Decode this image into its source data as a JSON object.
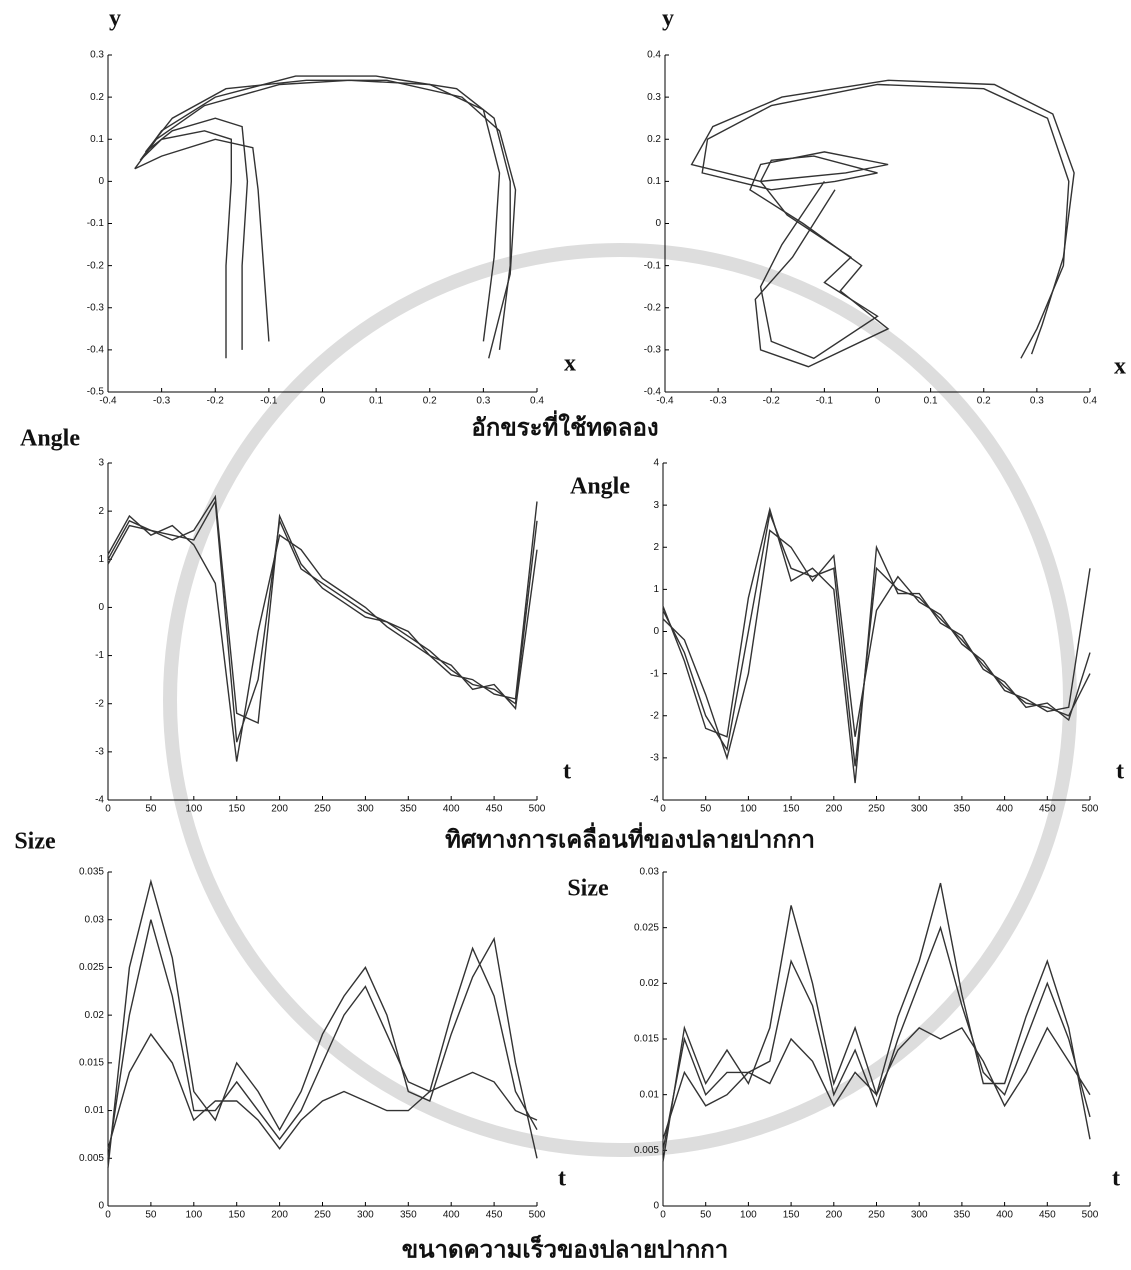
{
  "captions": [
    "อักขระที่ใช้ทดลอง",
    "ทิศทางการเคลื่อนที่ของปลายปากกา",
    "ขนาดความเร็วของปลายปากกา"
  ],
  "chart_data": [
    {
      "type": "trajectory",
      "ylabel": "y",
      "xlabel": "x",
      "color": "#333333",
      "xlim": [
        -0.4,
        0.4
      ],
      "ylim": [
        -0.5,
        0.3
      ],
      "xticks": [
        -0.4,
        -0.3,
        -0.2,
        -0.1,
        0,
        0.1,
        0.2,
        0.3,
        0.4
      ],
      "yticks": [
        -0.5,
        -0.4,
        -0.3,
        -0.2,
        -0.1,
        0,
        0.1,
        0.2,
        0.3
      ],
      "series": [
        {
          "x": [
            -0.18,
            -0.18,
            -0.17,
            -0.17,
            -0.22,
            -0.3,
            -0.34,
            -0.3,
            -0.2,
            -0.05,
            0.1,
            0.25,
            0.32,
            0.35,
            0.35,
            0.33
          ],
          "values": [
            -0.42,
            -0.2,
            0.0,
            0.1,
            0.12,
            0.1,
            0.05,
            0.12,
            0.2,
            0.25,
            0.25,
            0.22,
            0.15,
            0.0,
            -0.2,
            -0.4
          ]
        },
        {
          "x": [
            -0.15,
            -0.15,
            -0.14,
            -0.15,
            -0.2,
            -0.28,
            -0.33,
            -0.28,
            -0.18,
            -0.03,
            0.12,
            0.26,
            0.33,
            0.36,
            0.35,
            0.31
          ],
          "values": [
            -0.4,
            -0.2,
            0.0,
            0.13,
            0.15,
            0.12,
            0.07,
            0.15,
            0.22,
            0.24,
            0.24,
            0.2,
            0.12,
            -0.02,
            -0.22,
            -0.42
          ]
        },
        {
          "x": [
            -0.1,
            -0.11,
            -0.12,
            -0.13,
            -0.2,
            -0.3,
            -0.35,
            -0.31,
            -0.22,
            -0.08,
            0.05,
            0.2,
            0.3,
            0.33,
            0.32,
            0.3
          ],
          "values": [
            -0.38,
            -0.2,
            -0.02,
            0.08,
            0.1,
            0.06,
            0.03,
            0.1,
            0.18,
            0.23,
            0.24,
            0.23,
            0.17,
            0.02,
            -0.18,
            -0.38
          ]
        }
      ]
    },
    {
      "type": "trajectory",
      "ylabel": "y",
      "xlabel": "x",
      "color": "#333333",
      "xlim": [
        -0.4,
        0.4
      ],
      "ylim": [
        -0.4,
        0.4
      ],
      "xticks": [
        -0.4,
        -0.3,
        -0.2,
        -0.1,
        0,
        0.1,
        0.2,
        0.3,
        0.4
      ],
      "yticks": [
        -0.4,
        -0.3,
        -0.2,
        -0.1,
        0,
        0.1,
        0.2,
        0.3,
        0.4
      ],
      "series": [
        {
          "x": [
            -0.1,
            -0.18,
            -0.22,
            -0.2,
            -0.12,
            0.0,
            -0.1,
            -0.05,
            -0.17,
            -0.22,
            -0.2,
            -0.12,
            0.0,
            -0.08,
            -0.2,
            -0.33,
            -0.32,
            -0.2,
            0.0,
            0.2,
            0.32,
            0.36,
            0.35,
            0.3,
            0.27
          ],
          "values": [
            0.1,
            -0.05,
            -0.15,
            -0.28,
            -0.32,
            -0.22,
            -0.14,
            -0.08,
            0.02,
            0.1,
            0.15,
            0.16,
            0.12,
            0.1,
            0.08,
            0.12,
            0.2,
            0.28,
            0.33,
            0.32,
            0.25,
            0.1,
            -0.1,
            -0.25,
            -0.32
          ]
        },
        {
          "x": [
            -0.08,
            -0.16,
            -0.23,
            -0.22,
            -0.13,
            0.02,
            -0.07,
            -0.03,
            -0.14,
            -0.24,
            -0.22,
            -0.1,
            0.02,
            -0.06,
            -0.22,
            -0.35,
            -0.31,
            -0.18,
            0.02,
            0.22,
            0.33,
            0.37,
            0.35,
            0.31,
            0.29
          ],
          "values": [
            0.08,
            -0.08,
            -0.18,
            -0.3,
            -0.34,
            -0.25,
            -0.16,
            -0.1,
            0.0,
            0.08,
            0.14,
            0.17,
            0.14,
            0.12,
            0.1,
            0.14,
            0.23,
            0.3,
            0.34,
            0.33,
            0.26,
            0.12,
            -0.08,
            -0.24,
            -0.31
          ]
        }
      ]
    },
    {
      "type": "line",
      "ylabel": "Angle",
      "xlabel": "t",
      "color": "#333333",
      "x": [
        0,
        25,
        50,
        75,
        100,
        125,
        150,
        175,
        200,
        225,
        250,
        275,
        300,
        325,
        350,
        375,
        400,
        425,
        450,
        475,
        500
      ],
      "xlim": [
        0,
        500
      ],
      "ylim": [
        -4,
        3
      ],
      "xticks": [
        0,
        50,
        100,
        150,
        200,
        250,
        300,
        350,
        400,
        450,
        500
      ],
      "yticks": [
        -4,
        -3,
        -2,
        -1,
        0,
        1,
        2,
        3
      ],
      "series": [
        {
          "values": [
            1,
            1.8,
            1.6,
            1.5,
            1.4,
            2.2,
            -2.8,
            -1.5,
            1.8,
            0.8,
            0.5,
            0.2,
            -0.1,
            -0.3,
            -0.6,
            -0.9,
            -1.3,
            -1.6,
            -1.7,
            -2.0,
            1.8
          ]
        },
        {
          "values": [
            1.1,
            1.9,
            1.5,
            1.7,
            1.3,
            0.5,
            -3.2,
            -0.5,
            1.5,
            1.2,
            0.6,
            0.3,
            0.0,
            -0.4,
            -0.7,
            -1.0,
            -1.4,
            -1.5,
            -1.8,
            -1.9,
            2.2
          ]
        },
        {
          "values": [
            0.9,
            1.7,
            1.6,
            1.4,
            1.6,
            2.3,
            -2.2,
            -2.4,
            1.9,
            0.9,
            0.4,
            0.1,
            -0.2,
            -0.3,
            -0.5,
            -1.0,
            -1.2,
            -1.7,
            -1.6,
            -2.1,
            1.2
          ]
        }
      ]
    },
    {
      "type": "line",
      "ylabel": "Angle",
      "xlabel": "t",
      "color": "#333333",
      "x": [
        0,
        25,
        50,
        75,
        100,
        125,
        150,
        175,
        200,
        225,
        250,
        275,
        300,
        325,
        350,
        375,
        400,
        425,
        450,
        475,
        500
      ],
      "xlim": [
        0,
        500
      ],
      "ylim": [
        -4,
        4
      ],
      "xticks": [
        0,
        50,
        100,
        150,
        200,
        250,
        300,
        350,
        400,
        450,
        500
      ],
      "yticks": [
        -4,
        -3,
        -2,
        -1,
        0,
        1,
        2,
        3,
        4
      ],
      "series": [
        {
          "values": [
            0.5,
            -0.5,
            -2.0,
            -2.8,
            0.0,
            2.8,
            1.5,
            1.3,
            1.5,
            -3.2,
            1.5,
            1.0,
            0.8,
            0.3,
            -0.2,
            -0.8,
            -1.3,
            -1.7,
            -1.8,
            -2.0,
            -1.0
          ]
        },
        {
          "values": [
            0.3,
            -0.2,
            -1.5,
            -3.0,
            -1.0,
            2.4,
            2.0,
            1.2,
            1.8,
            -2.5,
            0.5,
            1.3,
            0.7,
            0.4,
            -0.3,
            -0.7,
            -1.4,
            -1.6,
            -1.9,
            -1.8,
            1.5
          ]
        },
        {
          "values": [
            0.6,
            -0.7,
            -2.3,
            -2.5,
            0.8,
            2.9,
            1.2,
            1.5,
            1.0,
            -3.6,
            2.0,
            0.9,
            0.9,
            0.2,
            -0.1,
            -0.9,
            -1.2,
            -1.8,
            -1.7,
            -2.1,
            -0.5
          ]
        }
      ]
    },
    {
      "type": "line",
      "ylabel": "Size",
      "xlabel": "t",
      "color": "#333333",
      "x": [
        0,
        25,
        50,
        75,
        100,
        125,
        150,
        175,
        200,
        225,
        250,
        275,
        300,
        325,
        350,
        375,
        400,
        425,
        450,
        475,
        500
      ],
      "xlim": [
        0,
        500
      ],
      "ylim": [
        0,
        0.035
      ],
      "xticks": [
        0,
        50,
        100,
        150,
        200,
        250,
        300,
        350,
        400,
        450,
        500
      ],
      "yticks": [
        0,
        0.005,
        0.01,
        0.015,
        0.02,
        0.025,
        0.03,
        0.035
      ],
      "series": [
        {
          "values": [
            0.005,
            0.02,
            0.03,
            0.022,
            0.01,
            0.01,
            0.013,
            0.01,
            0.007,
            0.01,
            0.015,
            0.02,
            0.023,
            0.018,
            0.013,
            0.012,
            0.02,
            0.027,
            0.022,
            0.012,
            0.008
          ]
        },
        {
          "values": [
            0.004,
            0.025,
            0.034,
            0.026,
            0.012,
            0.009,
            0.015,
            0.012,
            0.008,
            0.012,
            0.018,
            0.022,
            0.025,
            0.02,
            0.012,
            0.011,
            0.018,
            0.024,
            0.028,
            0.015,
            0.005
          ]
        },
        {
          "values": [
            0.006,
            0.014,
            0.018,
            0.015,
            0.009,
            0.011,
            0.011,
            0.009,
            0.006,
            0.009,
            0.011,
            0.012,
            0.011,
            0.01,
            0.01,
            0.012,
            0.013,
            0.014,
            0.013,
            0.01,
            0.009
          ]
        }
      ]
    },
    {
      "type": "line",
      "ylabel": "Size",
      "xlabel": "t",
      "color": "#333333",
      "x": [
        0,
        25,
        50,
        75,
        100,
        125,
        150,
        175,
        200,
        225,
        250,
        275,
        300,
        325,
        350,
        375,
        400,
        425,
        450,
        475,
        500
      ],
      "xlim": [
        0,
        500
      ],
      "ylim": [
        0,
        0.03
      ],
      "xticks": [
        0,
        50,
        100,
        150,
        200,
        250,
        300,
        350,
        400,
        450,
        500
      ],
      "yticks": [
        0,
        0.005,
        0.01,
        0.015,
        0.02,
        0.025,
        0.03
      ],
      "series": [
        {
          "values": [
            0.005,
            0.015,
            0.01,
            0.012,
            0.012,
            0.013,
            0.022,
            0.018,
            0.01,
            0.014,
            0.009,
            0.015,
            0.02,
            0.025,
            0.018,
            0.012,
            0.01,
            0.015,
            0.02,
            0.015,
            0.008
          ]
        },
        {
          "values": [
            0.004,
            0.016,
            0.011,
            0.014,
            0.011,
            0.016,
            0.027,
            0.02,
            0.011,
            0.016,
            0.01,
            0.017,
            0.022,
            0.029,
            0.019,
            0.011,
            0.011,
            0.017,
            0.022,
            0.016,
            0.006
          ]
        },
        {
          "values": [
            0.006,
            0.012,
            0.009,
            0.01,
            0.012,
            0.011,
            0.015,
            0.013,
            0.009,
            0.012,
            0.01,
            0.014,
            0.016,
            0.015,
            0.016,
            0.013,
            0.009,
            0.012,
            0.016,
            0.013,
            0.01
          ]
        }
      ]
    }
  ]
}
